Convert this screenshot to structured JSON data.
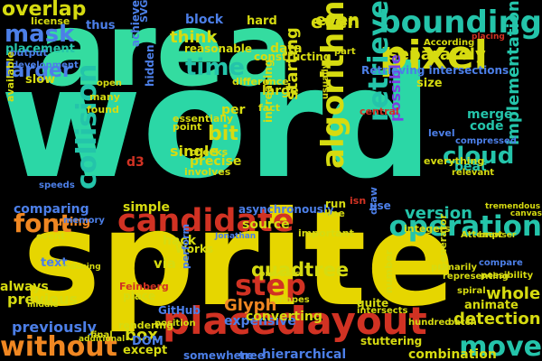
{
  "canvas": {
    "background_color": "#000000"
  },
  "words": [
    {
      "text": "word",
      "color": "#2bd7a6"
    },
    {
      "text": "sprite",
      "color": "#e6d600"
    },
    {
      "text": "area",
      "color": "#34dca0"
    },
    {
      "text": "placed",
      "color": "#d13223"
    },
    {
      "text": "layout",
      "color": "#d13223"
    },
    {
      "text": "algorithm",
      "color": "#d6db10"
    },
    {
      "text": "candidate",
      "color": "#d13223"
    },
    {
      "text": "bounding",
      "color": "#24c4aa"
    },
    {
      "text": "pixel",
      "color": "#d6db10"
    },
    {
      "text": "step",
      "color": "#d13223"
    },
    {
      "text": "collision",
      "color": "#24c4aa"
    },
    {
      "text": "operation",
      "color": "#24c4aa"
    },
    {
      "text": "move",
      "color": "#24c4aa"
    },
    {
      "text": "without",
      "color": "#f08722"
    },
    {
      "text": "retrieve",
      "color": "#24c4aa"
    },
    {
      "text": "mask",
      "color": "#4c7fe8"
    },
    {
      "text": "time",
      "color": "#24c4aa"
    },
    {
      "text": "font",
      "color": "#f08722"
    },
    {
      "text": "cloud",
      "color": "#24c4aa"
    },
    {
      "text": "overlap",
      "color": "#d6db10"
    },
    {
      "text": "larger",
      "color": "#4c7fe8"
    },
    {
      "text": "implementation",
      "color": "#24c4aa"
    },
    {
      "text": "bit",
      "color": "#d6db10"
    },
    {
      "text": "quadtree",
      "color": "#d6db10"
    },
    {
      "text": "version",
      "color": "#24c4aa"
    },
    {
      "text": "separately",
      "color": "#d6db10"
    },
    {
      "text": "starting",
      "color": "#d6db10"
    },
    {
      "text": "detection",
      "color": "#d6db10"
    },
    {
      "text": "whole",
      "color": "#d6db10"
    },
    {
      "text": "Glyph",
      "color": "#f08722"
    },
    {
      "text": "even",
      "color": "#d6db10"
    },
    {
      "text": "possible",
      "color": "#7b3fe4"
    },
    {
      "text": "think",
      "color": "#d6db10"
    },
    {
      "text": "box",
      "color": "#d6db10"
    },
    {
      "text": "previous",
      "color": "#d6db10"
    },
    {
      "text": "previously",
      "color": "#4c7fe8"
    },
    {
      "text": "combination",
      "color": "#d6db10"
    },
    {
      "text": "hierarchical",
      "color": "#4c7fe8"
    },
    {
      "text": "expensive",
      "color": "#4c7fe8"
    },
    {
      "text": "converting",
      "color": "#d6db10"
    },
    {
      "text": "simple",
      "color": "#d6db10"
    },
    {
      "text": "single",
      "color": "#d6db10"
    },
    {
      "text": "precise",
      "color": "#d6db10"
    },
    {
      "text": "source",
      "color": "#d6db10"
    },
    {
      "text": "data",
      "color": "#d6db10"
    },
    {
      "text": "size",
      "color": "#d6db10"
    },
    {
      "text": "large",
      "color": "#d6db10"
    },
    {
      "text": "even",
      "color": "#d6db10"
    },
    {
      "text": "thus",
      "color": "#4c7fe8"
    },
    {
      "text": "SVG",
      "color": "#4c7fe8"
    },
    {
      "text": "block",
      "color": "#4c7fe8"
    },
    {
      "text": "hard",
      "color": "#d6db10"
    },
    {
      "text": "placement",
      "color": "#24c4aa"
    },
    {
      "text": "license",
      "color": "#d6db10"
    },
    {
      "text": "slow",
      "color": "#d6db10"
    },
    {
      "text": "achieve",
      "color": "#4c7fe8"
    },
    {
      "text": "hidden",
      "color": "#4c7fe8"
    },
    {
      "text": "per",
      "color": "#d6db10"
    },
    {
      "text": "code",
      "color": "#24c4aa"
    },
    {
      "text": "merge",
      "color": "#24c4aa"
    },
    {
      "text": "beat",
      "color": "#24c4aa"
    },
    {
      "text": "d3",
      "color": "#d13223"
    },
    {
      "text": "hack",
      "color": "#d6db10"
    },
    {
      "text": "Works",
      "color": "#d6db10"
    },
    {
      "text": "via",
      "color": "#d6db10"
    },
    {
      "text": "using",
      "color": "#f08722"
    },
    {
      "text": "comparing",
      "color": "#4c7fe8"
    },
    {
      "text": "always",
      "color": "#d6db10"
    },
    {
      "text": "text",
      "color": "#4c7fe8"
    },
    {
      "text": "animate",
      "color": "#d6db10"
    },
    {
      "text": "DOM",
      "color": "#4c7fe8"
    },
    {
      "text": "except",
      "color": "#d6db10"
    },
    {
      "text": "somewhere",
      "color": "#4c7fe8"
    },
    {
      "text": "stuttering",
      "color": "#d6db10"
    },
    {
      "text": "GitHub",
      "color": "#4c7fe8"
    },
    {
      "text": "tree",
      "color": "#4c7fe8"
    },
    {
      "text": "Retrieving intersections",
      "color": "#4c7fe8"
    },
    {
      "text": "fact",
      "color": "#d6db10"
    },
    {
      "text": "point",
      "color": "#d6db10"
    },
    {
      "text": "essentially",
      "color": "#d6db10"
    },
    {
      "text": "reasonable",
      "color": "#d6db10"
    },
    {
      "text": "constructing",
      "color": "#d6db10"
    },
    {
      "text": "difference",
      "color": "#d6db10"
    },
    {
      "text": "many",
      "color": "#d6db10"
    },
    {
      "text": "found",
      "color": "#d6db10"
    },
    {
      "text": "open",
      "color": "#d6db10"
    },
    {
      "text": "output",
      "color": "#4c7fe8"
    },
    {
      "text": "development",
      "color": "#4c7fe8"
    },
    {
      "text": "available",
      "color": "#d6db10"
    },
    {
      "text": "increasing",
      "color": "#d6db10"
    },
    {
      "text": "asynchronously",
      "color": "#4c7fe8"
    },
    {
      "text": "Feinberg",
      "color": "#d13223"
    },
    {
      "text": "place",
      "color": "#d6db10"
    },
    {
      "text": "rendering",
      "color": "#d6db10"
    },
    {
      "text": "memory",
      "color": "#4c7fe8"
    },
    {
      "text": "event",
      "color": "#d6db10"
    },
    {
      "text": "speeds",
      "color": "#4c7fe8"
    },
    {
      "text": "involves",
      "color": "#d6db10"
    },
    {
      "text": "checks",
      "color": "#d6db10"
    },
    {
      "text": "Jonathan",
      "color": "#4c7fe8"
    },
    {
      "text": "perform",
      "color": "#4c7fe8"
    },
    {
      "text": "shapes",
      "color": "#d6db10"
    },
    {
      "text": "prevents",
      "color": "#d6db10"
    },
    {
      "text": "position",
      "color": "#d6db10"
    },
    {
      "text": "final",
      "color": "#d6db10"
    },
    {
      "text": "additional",
      "color": "#d6db10"
    },
    {
      "text": "reducing",
      "color": "#d6db10"
    },
    {
      "text": "middle",
      "color": "#d6db10"
    },
    {
      "text": "intersects",
      "color": "#d6db10"
    },
    {
      "text": "isn",
      "color": "#d13223"
    },
    {
      "text": "run",
      "color": "#d6db10"
    },
    {
      "text": "line",
      "color": "#d6db10"
    },
    {
      "text": "important",
      "color": "#d6db10"
    },
    {
      "text": "integers",
      "color": "#d6db10"
    },
    {
      "text": "Attempt",
      "color": "#d6db10"
    },
    {
      "text": "canvas",
      "color": "#d6db10"
    },
    {
      "text": "browser",
      "color": "#d6db10"
    },
    {
      "text": "primarily",
      "color": "#d6db10"
    },
    {
      "text": "compare",
      "color": "#4c7fe8"
    },
    {
      "text": "possibility",
      "color": "#d6db10"
    },
    {
      "text": "representing",
      "color": "#d6db10"
    },
    {
      "text": "hundred",
      "color": "#d6db10"
    },
    {
      "text": "batch",
      "color": "#d6db10"
    },
    {
      "text": "quite",
      "color": "#d6db10"
    },
    {
      "text": "number",
      "color": "#d6db10"
    },
    {
      "text": "spiral",
      "color": "#d6db10"
    },
    {
      "text": "everything",
      "color": "#d6db10"
    },
    {
      "text": "relevant",
      "color": "#d6db10"
    },
    {
      "text": "compressed",
      "color": "#4c7fe8"
    },
    {
      "text": "level",
      "color": "#4c7fe8"
    },
    {
      "text": "draw",
      "color": "#4c7fe8"
    },
    {
      "text": "use",
      "color": "#4c7fe8"
    },
    {
      "text": "central",
      "color": "#d13223"
    },
    {
      "text": "part",
      "color": "#d6db10"
    },
    {
      "text": "usually",
      "color": "#d6db10"
    },
    {
      "text": "According",
      "color": "#d6db10"
    },
    {
      "text": "placing",
      "color": "#d13223"
    },
    {
      "text": "Generator",
      "color": "#d6db10"
    },
    {
      "text": "tremendous",
      "color": "#d6db10"
    }
  ]
}
